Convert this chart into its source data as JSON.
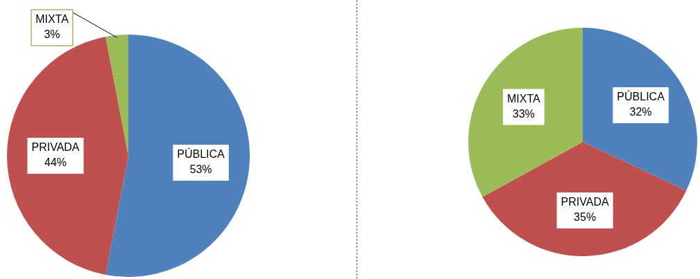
{
  "chart_data": [
    {
      "type": "pie",
      "categories": [
        "PÚBLICA",
        "PRIVADA",
        "MIXTA"
      ],
      "values": [
        53,
        44,
        3
      ],
      "colors": [
        "#4f81bd",
        "#c0504d",
        "#9bbb59"
      ],
      "value_labels": [
        "53%",
        "44%",
        "3%"
      ]
    },
    {
      "type": "pie",
      "categories": [
        "PÚBLICA",
        "PRIVADA",
        "MIXTA"
      ],
      "values": [
        32,
        35,
        33
      ],
      "colors": [
        "#4f81bd",
        "#c0504d",
        "#9bbb59"
      ],
      "value_labels": [
        "32%",
        "35%",
        "33%"
      ]
    }
  ]
}
